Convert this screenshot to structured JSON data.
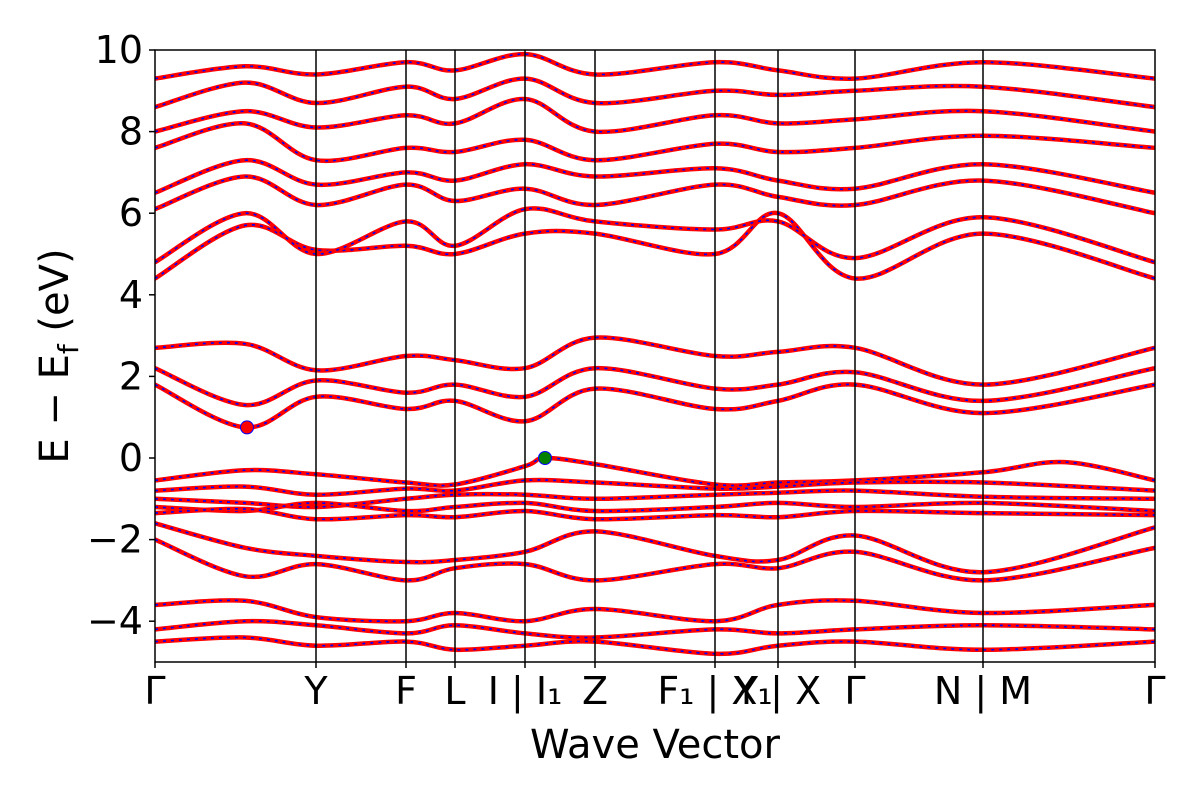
{
  "chart_data": {
    "type": "line",
    "title": "",
    "xlabel": "Wave Vector",
    "ylabel": "E − E_f (eV)",
    "ylabel_parts": {
      "main": "E − E",
      "sub": "f",
      "unit": " (eV)"
    },
    "ylim": [
      -5,
      10
    ],
    "yticks": [
      -4,
      -2,
      0,
      2,
      4,
      6,
      8,
      10
    ],
    "ytick_labels": [
      "−4",
      "−2",
      "0",
      "2",
      "4",
      "6",
      "8",
      "10"
    ],
    "xlim": [
      0,
      1
    ],
    "grid": false,
    "legend": "none",
    "high_symmetry_points": [
      {
        "label": "Γ",
        "x": 0.0
      },
      {
        "label": "Y",
        "x": 0.161
      },
      {
        "label": "F",
        "x": 0.251
      },
      {
        "label": "L",
        "x": 0.3
      },
      {
        "label": "I | I₁",
        "x": 0.37
      },
      {
        "label": "Z",
        "x": 0.44
      },
      {
        "label": "F₁ | X₁",
        "x": 0.56
      },
      {
        "label": "Y | X",
        "x": 0.623
      },
      {
        "label": "Γ",
        "x": 0.7
      },
      {
        "label": "N | M",
        "x": 0.828
      },
      {
        "label": "Γ",
        "x": 1.0
      }
    ],
    "band_style": {
      "main_color": "#ff0000",
      "overlay_color": "#0000ff",
      "overlay_dashed": true
    },
    "series": [
      {
        "name": "",
        "kind": "valence",
        "x": [
          0,
          0.09,
          0.161,
          0.251,
          0.3,
          0.37,
          0.39,
          0.44,
          0.56,
          0.623,
          0.7,
          0.828,
          0.91,
          1.0
        ],
        "y": [
          -0.55,
          -0.3,
          -0.4,
          -0.6,
          -0.65,
          -0.2,
          0.0,
          -0.15,
          -0.65,
          -0.6,
          -0.55,
          -0.35,
          -0.1,
          -0.55
        ]
      },
      {
        "name": "",
        "kind": "valence",
        "x": [
          0,
          0.09,
          0.161,
          0.251,
          0.3,
          0.37,
          0.44,
          0.56,
          0.623,
          0.7,
          0.828,
          1.0
        ],
        "y": [
          -0.8,
          -0.7,
          -0.9,
          -0.75,
          -0.8,
          -0.55,
          -0.6,
          -0.75,
          -0.7,
          -0.6,
          -0.6,
          -0.8
        ]
      },
      {
        "name": "",
        "kind": "valence",
        "x": [
          0,
          0.09,
          0.161,
          0.251,
          0.3,
          0.37,
          0.44,
          0.56,
          0.623,
          0.7,
          0.828,
          1.0
        ],
        "y": [
          -1.0,
          -1.1,
          -1.2,
          -1.0,
          -0.9,
          -0.9,
          -1.0,
          -0.9,
          -0.85,
          -0.8,
          -0.95,
          -1.0
        ]
      },
      {
        "name": "",
        "kind": "valence",
        "x": [
          0,
          0.09,
          0.161,
          0.251,
          0.3,
          0.37,
          0.44,
          0.56,
          0.623,
          0.7,
          0.828,
          1.0
        ],
        "y": [
          -1.2,
          -1.3,
          -1.1,
          -1.3,
          -1.2,
          -1.1,
          -1.3,
          -1.2,
          -1.1,
          -1.2,
          -1.1,
          -1.3
        ]
      },
      {
        "name": "",
        "kind": "valence",
        "x": [
          0,
          0.09,
          0.161,
          0.251,
          0.3,
          0.37,
          0.44,
          0.56,
          0.623,
          0.7,
          0.828,
          1.0
        ],
        "y": [
          -1.35,
          -1.25,
          -1.5,
          -1.4,
          -1.45,
          -1.3,
          -1.5,
          -1.4,
          -1.45,
          -1.3,
          -1.35,
          -1.4
        ]
      },
      {
        "name": "",
        "kind": "valence",
        "x": [
          0,
          0.09,
          0.161,
          0.251,
          0.3,
          0.37,
          0.44,
          0.56,
          0.623,
          0.7,
          0.828,
          1.0
        ],
        "y": [
          -1.6,
          -2.2,
          -2.4,
          -2.55,
          -2.5,
          -2.3,
          -1.8,
          -2.4,
          -2.5,
          -1.9,
          -2.8,
          -1.7
        ]
      },
      {
        "name": "",
        "kind": "valence",
        "x": [
          0,
          0.09,
          0.161,
          0.251,
          0.3,
          0.37,
          0.44,
          0.56,
          0.623,
          0.7,
          0.828,
          1.0
        ],
        "y": [
          -2.0,
          -2.9,
          -2.6,
          -3.0,
          -2.7,
          -2.6,
          -3.0,
          -2.6,
          -2.7,
          -2.3,
          -3.0,
          -2.2
        ]
      },
      {
        "name": "",
        "kind": "valence",
        "x": [
          0,
          0.09,
          0.161,
          0.251,
          0.3,
          0.37,
          0.44,
          0.56,
          0.623,
          0.7,
          0.828,
          1.0
        ],
        "y": [
          -3.6,
          -3.5,
          -3.9,
          -4.0,
          -3.8,
          -4.0,
          -3.7,
          -4.0,
          -3.6,
          -3.5,
          -3.8,
          -3.6
        ]
      },
      {
        "name": "",
        "kind": "valence",
        "x": [
          0,
          0.09,
          0.161,
          0.251,
          0.3,
          0.37,
          0.44,
          0.56,
          0.623,
          0.7,
          0.828,
          1.0
        ],
        "y": [
          -4.2,
          -4.0,
          -4.1,
          -4.3,
          -4.1,
          -4.3,
          -4.4,
          -4.2,
          -4.3,
          -4.2,
          -4.1,
          -4.2
        ]
      },
      {
        "name": "",
        "kind": "valence",
        "x": [
          0,
          0.09,
          0.161,
          0.251,
          0.3,
          0.37,
          0.44,
          0.56,
          0.623,
          0.7,
          0.828,
          1.0
        ],
        "y": [
          -4.5,
          -4.4,
          -4.6,
          -4.5,
          -4.7,
          -4.6,
          -4.5,
          -4.8,
          -4.6,
          -4.5,
          -4.7,
          -4.5
        ]
      },
      {
        "name": "",
        "kind": "conduction",
        "x": [
          0,
          0.09,
          0.161,
          0.251,
          0.3,
          0.37,
          0.44,
          0.56,
          0.623,
          0.7,
          0.828,
          1.0
        ],
        "y": [
          1.8,
          0.75,
          1.5,
          1.2,
          1.4,
          0.9,
          1.7,
          1.2,
          1.4,
          1.8,
          1.1,
          1.8
        ]
      },
      {
        "name": "",
        "kind": "conduction",
        "x": [
          0,
          0.09,
          0.161,
          0.251,
          0.3,
          0.37,
          0.44,
          0.56,
          0.623,
          0.7,
          0.828,
          1.0
        ],
        "y": [
          2.2,
          1.3,
          1.9,
          1.6,
          1.8,
          1.5,
          2.2,
          1.7,
          1.8,
          2.1,
          1.4,
          2.2
        ]
      },
      {
        "name": "",
        "kind": "conduction",
        "x": [
          0,
          0.09,
          0.161,
          0.251,
          0.3,
          0.37,
          0.44,
          0.56,
          0.623,
          0.7,
          0.828,
          1.0
        ],
        "y": [
          2.7,
          2.8,
          2.15,
          2.5,
          2.4,
          2.2,
          2.95,
          2.5,
          2.6,
          2.7,
          1.8,
          2.7
        ]
      },
      {
        "name": "",
        "kind": "conduction",
        "x": [
          0,
          0.09,
          0.161,
          0.251,
          0.3,
          0.37,
          0.44,
          0.56,
          0.623,
          0.7,
          0.828,
          1.0
        ],
        "y": [
          4.4,
          5.7,
          5.1,
          5.2,
          5.0,
          5.5,
          5.5,
          5.0,
          6.0,
          4.4,
          5.5,
          4.4
        ]
      },
      {
        "name": "",
        "kind": "conduction",
        "x": [
          0,
          0.09,
          0.161,
          0.251,
          0.3,
          0.37,
          0.44,
          0.56,
          0.623,
          0.7,
          0.828,
          1.0
        ],
        "y": [
          4.8,
          6.0,
          5.0,
          5.8,
          5.2,
          6.1,
          5.8,
          5.6,
          5.8,
          4.9,
          5.9,
          4.8
        ]
      },
      {
        "name": "",
        "kind": "conduction",
        "x": [
          0,
          0.09,
          0.161,
          0.251,
          0.3,
          0.37,
          0.44,
          0.56,
          0.623,
          0.7,
          0.828,
          1.0
        ],
        "y": [
          6.1,
          6.9,
          6.2,
          6.7,
          6.3,
          6.6,
          6.2,
          6.7,
          6.4,
          6.2,
          6.8,
          6.0
        ]
      },
      {
        "name": "",
        "kind": "conduction",
        "x": [
          0,
          0.09,
          0.161,
          0.251,
          0.3,
          0.37,
          0.44,
          0.56,
          0.623,
          0.7,
          0.828,
          1.0
        ],
        "y": [
          6.5,
          7.3,
          6.7,
          7.0,
          6.8,
          7.2,
          6.9,
          7.1,
          6.8,
          6.6,
          7.2,
          6.5
        ]
      },
      {
        "name": "",
        "kind": "conduction",
        "x": [
          0,
          0.09,
          0.161,
          0.251,
          0.3,
          0.37,
          0.44,
          0.56,
          0.623,
          0.7,
          0.828,
          1.0
        ],
        "y": [
          7.6,
          8.2,
          7.3,
          7.6,
          7.5,
          7.8,
          7.3,
          7.7,
          7.5,
          7.6,
          7.9,
          7.6
        ]
      },
      {
        "name": "",
        "kind": "conduction",
        "x": [
          0,
          0.09,
          0.161,
          0.251,
          0.3,
          0.37,
          0.44,
          0.56,
          0.623,
          0.7,
          0.828,
          1.0
        ],
        "y": [
          8.0,
          8.5,
          8.1,
          8.4,
          8.2,
          8.8,
          8.0,
          8.4,
          8.2,
          8.3,
          8.5,
          8.0
        ]
      },
      {
        "name": "",
        "kind": "conduction",
        "x": [
          0,
          0.09,
          0.161,
          0.251,
          0.3,
          0.37,
          0.44,
          0.56,
          0.623,
          0.7,
          0.828,
          1.0
        ],
        "y": [
          8.6,
          9.2,
          8.7,
          9.1,
          8.8,
          9.3,
          8.7,
          9.0,
          8.9,
          9.0,
          9.1,
          8.6
        ]
      },
      {
        "name": "",
        "kind": "conduction",
        "x": [
          0,
          0.09,
          0.161,
          0.251,
          0.3,
          0.37,
          0.44,
          0.56,
          0.623,
          0.7,
          0.828,
          1.0
        ],
        "y": [
          9.3,
          9.6,
          9.4,
          9.7,
          9.5,
          9.9,
          9.4,
          9.7,
          9.5,
          9.3,
          9.7,
          9.3
        ]
      }
    ],
    "markers": [
      {
        "name": "",
        "x": 0.092,
        "y": 0.75,
        "color": "#ff0000"
      },
      {
        "name": "",
        "x": 0.39,
        "y": 0.0,
        "color": "#008000"
      }
    ]
  }
}
